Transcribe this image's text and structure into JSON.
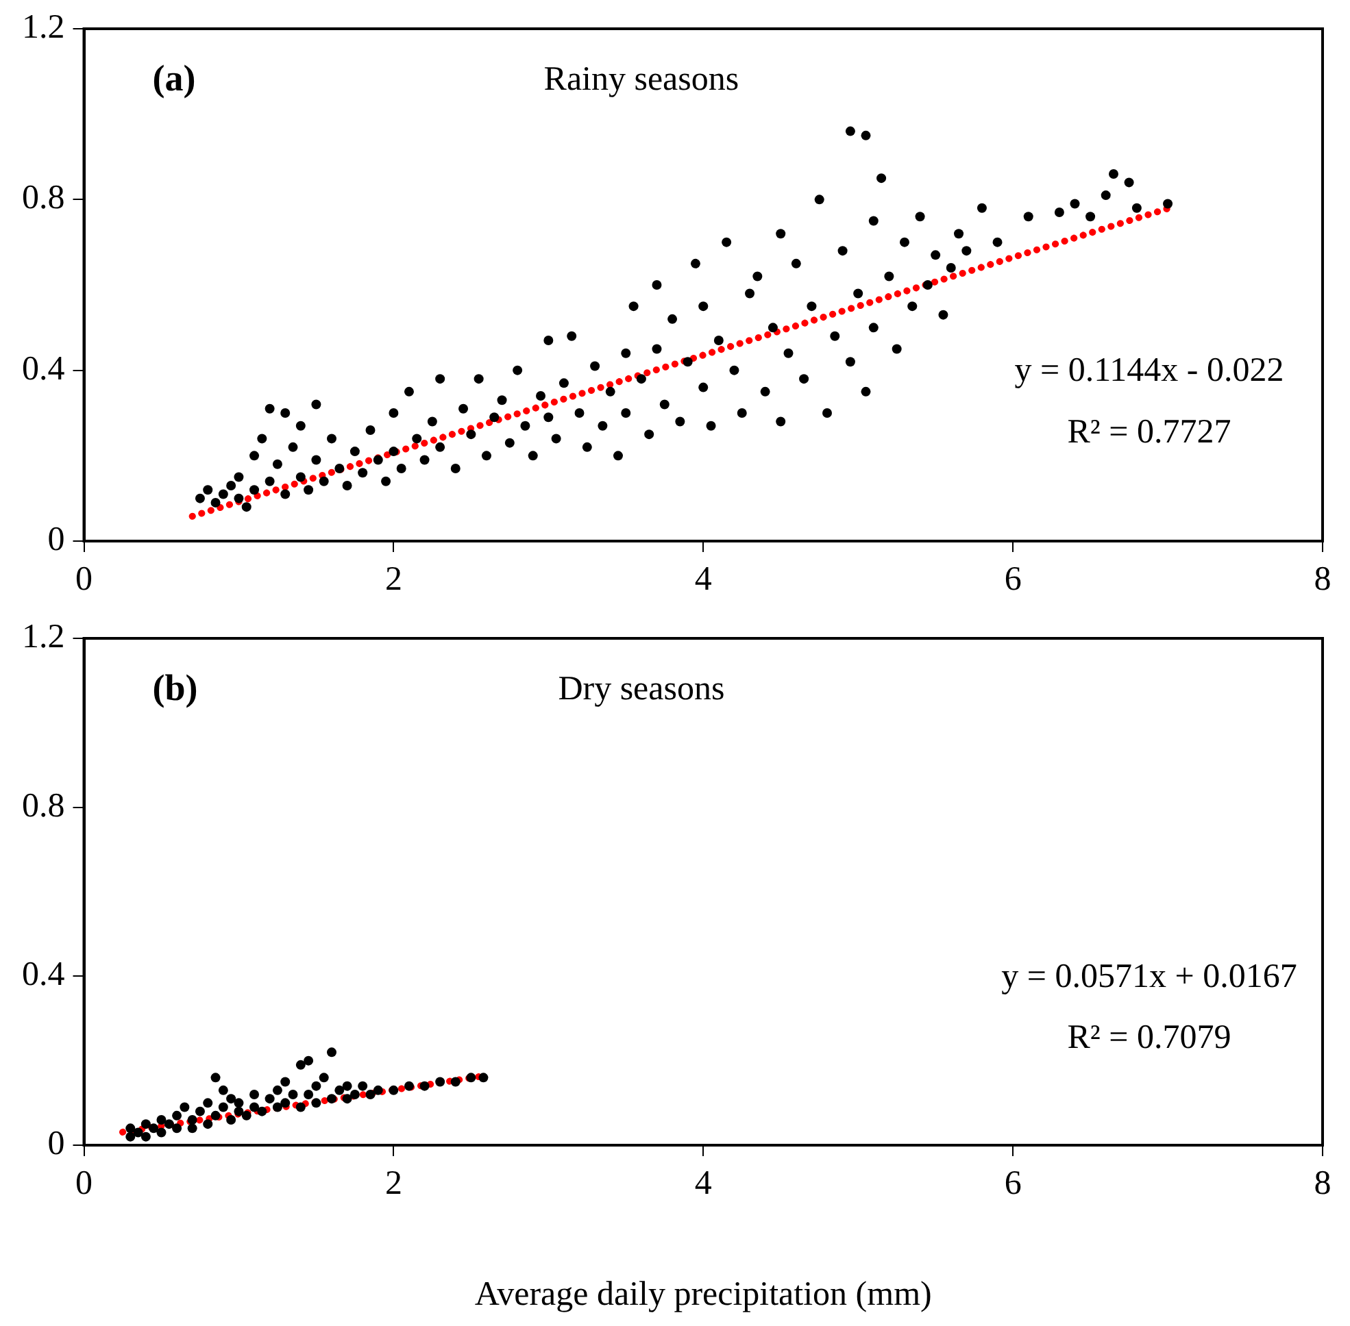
{
  "chart_data": [
    {
      "type": "scatter",
      "title": "Rainy seasons",
      "annotations": [
        "(a)",
        "y = 0.1144x - 0.022",
        "R² = 0.7727"
      ],
      "xlim": [
        0,
        8
      ],
      "xticks": [
        0,
        2,
        4,
        6,
        8
      ],
      "ylim": [
        0,
        1.2
      ],
      "yticks": [
        0,
        0.4,
        0.8,
        1.2
      ],
      "grid": false,
      "legend": false,
      "marker": "circle",
      "series": [
        {
          "type": "scatter",
          "color": "#000000",
          "x": [
            0.75,
            0.8,
            0.85,
            0.9,
            0.95,
            1.0,
            1.0,
            1.05,
            1.1,
            1.1,
            1.15,
            1.2,
            1.2,
            1.25,
            1.3,
            1.3,
            1.35,
            1.4,
            1.4,
            1.45,
            1.5,
            1.5,
            1.55,
            1.6,
            1.65,
            1.7,
            1.75,
            1.8,
            1.85,
            1.9,
            1.95,
            2.0,
            2.0,
            2.05,
            2.1,
            2.15,
            2.2,
            2.25,
            2.3,
            2.3,
            2.4,
            2.45,
            2.5,
            2.55,
            2.6,
            2.65,
            2.7,
            2.75,
            2.8,
            2.85,
            2.9,
            2.95,
            3.0,
            3.0,
            3.05,
            3.1,
            3.15,
            3.2,
            3.25,
            3.3,
            3.35,
            3.4,
            3.45,
            3.5,
            3.5,
            3.55,
            3.6,
            3.65,
            3.7,
            3.7,
            3.75,
            3.8,
            3.85,
            3.9,
            3.95,
            4.0,
            4.0,
            4.05,
            4.1,
            4.15,
            4.2,
            4.25,
            4.3,
            4.35,
            4.4,
            4.45,
            4.5,
            4.5,
            4.55,
            4.6,
            4.65,
            4.7,
            4.75,
            4.8,
            4.85,
            4.9,
            4.95,
            4.95,
            5.0,
            5.05,
            5.05,
            5.1,
            5.1,
            5.15,
            5.2,
            5.25,
            5.3,
            5.35,
            5.4,
            5.45,
            5.5,
            5.55,
            5.6,
            5.65,
            5.7,
            5.8,
            5.9,
            6.1,
            6.3,
            6.4,
            6.5,
            6.6,
            6.65,
            6.75,
            6.8,
            7.0
          ],
          "values": [
            0.1,
            0.12,
            0.09,
            0.11,
            0.13,
            0.1,
            0.15,
            0.08,
            0.2,
            0.12,
            0.24,
            0.31,
            0.14,
            0.18,
            0.3,
            0.11,
            0.22,
            0.27,
            0.15,
            0.12,
            0.32,
            0.19,
            0.14,
            0.24,
            0.17,
            0.13,
            0.21,
            0.16,
            0.26,
            0.19,
            0.14,
            0.3,
            0.21,
            0.17,
            0.35,
            0.24,
            0.19,
            0.28,
            0.38,
            0.22,
            0.17,
            0.31,
            0.25,
            0.38,
            0.2,
            0.29,
            0.33,
            0.23,
            0.4,
            0.27,
            0.2,
            0.34,
            0.47,
            0.29,
            0.24,
            0.37,
            0.48,
            0.3,
            0.22,
            0.41,
            0.27,
            0.35,
            0.2,
            0.44,
            0.3,
            0.55,
            0.38,
            0.25,
            0.6,
            0.45,
            0.32,
            0.52,
            0.28,
            0.42,
            0.65,
            0.36,
            0.55,
            0.27,
            0.47,
            0.7,
            0.4,
            0.3,
            0.58,
            0.62,
            0.35,
            0.5,
            0.72,
            0.28,
            0.44,
            0.65,
            0.38,
            0.55,
            0.8,
            0.3,
            0.48,
            0.68,
            0.96,
            0.42,
            0.58,
            0.95,
            0.35,
            0.75,
            0.5,
            0.85,
            0.62,
            0.45,
            0.7,
            0.55,
            0.76,
            0.6,
            0.67,
            0.53,
            0.64,
            0.72,
            0.68,
            0.78,
            0.7,
            0.76,
            0.77,
            0.79,
            0.76,
            0.81,
            0.86,
            0.84,
            0.78,
            0.79
          ]
        },
        {
          "type": "line",
          "color": "#ff0000",
          "line_style": "dotted",
          "marker": "none",
          "x": [
            0.7,
            7.0
          ],
          "values": [
            0.058,
            0.779
          ]
        }
      ]
    },
    {
      "type": "scatter",
      "title": "Dry seasons",
      "xlabel": "Average daily precipitation (mm)",
      "annotations": [
        "(b)",
        "y = 0.0571x + 0.0167",
        "R² = 0.7079"
      ],
      "xlim": [
        0,
        8
      ],
      "xticks": [
        0,
        2,
        4,
        6,
        8
      ],
      "ylim": [
        0,
        1.2
      ],
      "yticks": [
        0,
        0.4,
        0.8,
        1.2
      ],
      "grid": false,
      "legend": false,
      "marker": "circle",
      "series": [
        {
          "type": "scatter",
          "color": "#000000",
          "x": [
            0.3,
            0.3,
            0.35,
            0.4,
            0.4,
            0.45,
            0.5,
            0.5,
            0.55,
            0.6,
            0.6,
            0.65,
            0.7,
            0.7,
            0.75,
            0.8,
            0.8,
            0.85,
            0.85,
            0.9,
            0.9,
            0.95,
            0.95,
            1.0,
            1.0,
            1.05,
            1.1,
            1.1,
            1.15,
            1.2,
            1.25,
            1.25,
            1.3,
            1.3,
            1.35,
            1.4,
            1.4,
            1.45,
            1.45,
            1.5,
            1.5,
            1.55,
            1.6,
            1.6,
            1.65,
            1.7,
            1.7,
            1.75,
            1.8,
            1.85,
            1.9,
            2.0,
            2.1,
            2.2,
            2.3,
            2.4,
            2.5,
            2.58
          ],
          "values": [
            0.02,
            0.04,
            0.03,
            0.05,
            0.02,
            0.04,
            0.06,
            0.03,
            0.05,
            0.07,
            0.04,
            0.09,
            0.06,
            0.04,
            0.08,
            0.1,
            0.05,
            0.16,
            0.07,
            0.13,
            0.09,
            0.11,
            0.06,
            0.08,
            0.1,
            0.07,
            0.12,
            0.09,
            0.08,
            0.11,
            0.13,
            0.09,
            0.15,
            0.1,
            0.12,
            0.19,
            0.09,
            0.2,
            0.12,
            0.14,
            0.1,
            0.16,
            0.22,
            0.11,
            0.13,
            0.14,
            0.11,
            0.12,
            0.14,
            0.12,
            0.13,
            0.13,
            0.14,
            0.14,
            0.15,
            0.15,
            0.16,
            0.16
          ]
        },
        {
          "type": "line",
          "color": "#ff0000",
          "line_style": "dotted",
          "marker": "none",
          "x": [
            0.25,
            2.6
          ],
          "values": [
            0.031,
            0.165
          ]
        }
      ]
    }
  ]
}
